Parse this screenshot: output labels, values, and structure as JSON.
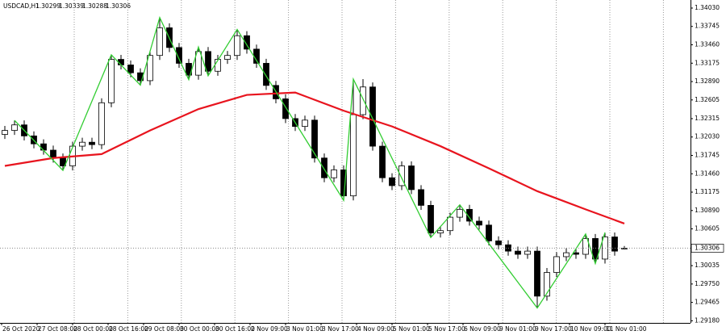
{
  "chart_data": {
    "type": "candlestick",
    "header": {
      "symbol": "USDCAD,H1",
      "open": 1.30299,
      "high": 1.30339,
      "low": 1.30288,
      "close": 1.30306
    },
    "open": [
      1.3207,
      1.32132,
      1.32218,
      1.32047,
      1.31924,
      1.31826,
      1.31704,
      1.31582,
      1.31888,
      1.31949,
      1.31912,
      1.32561,
      1.33234,
      1.33148,
      1.33026,
      1.32904,
      1.33295,
      1.33724,
      1.33418,
      1.33173,
      1.32989,
      1.33356,
      1.3305,
      1.33234,
      1.33295,
      1.33601,
      1.33393,
      1.33173,
      1.3283,
      1.32622,
      1.32316,
      1.32194,
      1.32292,
      1.31704,
      1.31398,
      1.3152,
      1.31117,
      1.32377,
      1.32806,
      1.31888,
      1.31398,
      1.31276,
      1.31582,
      1.31214,
      1.3097,
      1.30541,
      1.30578,
      1.30786,
      1.30908,
      1.30725,
      1.30664,
      1.30419,
      1.30358,
      1.3026,
      1.30211,
      1.3026,
      1.29562,
      1.29929,
      1.30174,
      1.30235,
      1.30211,
      1.30456,
      1.30137,
      1.3048,
      1.30299
    ],
    "high": [
      1.32202,
      1.32288,
      1.32288,
      1.32117,
      1.31994,
      1.31896,
      1.31774,
      1.31958,
      1.32019,
      1.32019,
      1.32631,
      1.33304,
      1.33304,
      1.33218,
      1.33096,
      1.33365,
      1.33883,
      1.33794,
      1.33488,
      1.33243,
      1.33426,
      1.33426,
      1.33304,
      1.33365,
      1.33699,
      1.33671,
      1.33463,
      1.33243,
      1.329,
      1.32692,
      1.32386,
      1.32362,
      1.32362,
      1.31774,
      1.3159,
      1.3159,
      1.32928,
      1.32928,
      1.32876,
      1.31958,
      1.31468,
      1.31652,
      1.31652,
      1.31284,
      1.3104,
      1.30648,
      1.30856,
      1.30978,
      1.30978,
      1.30795,
      1.30734,
      1.30489,
      1.30428,
      1.3033,
      1.3033,
      1.3033,
      1.29999,
      1.30244,
      1.30305,
      1.30305,
      1.30526,
      1.30526,
      1.3055,
      1.3055,
      1.30339
    ],
    "low": [
      1.32,
      1.32062,
      1.31977,
      1.31854,
      1.31756,
      1.31634,
      1.31512,
      1.31512,
      1.31818,
      1.31842,
      1.31842,
      1.32491,
      1.33078,
      1.32956,
      1.32834,
      1.32834,
      1.33225,
      1.33348,
      1.33103,
      1.32919,
      1.32919,
      1.3298,
      1.3298,
      1.33164,
      1.33225,
      1.33323,
      1.33103,
      1.3276,
      1.32552,
      1.32246,
      1.32124,
      1.32124,
      1.31634,
      1.31328,
      1.31328,
      1.31047,
      1.31047,
      1.32307,
      1.31818,
      1.31328,
      1.31206,
      1.31206,
      1.31144,
      1.309,
      1.30471,
      1.30471,
      1.30508,
      1.30716,
      1.30655,
      1.30594,
      1.30349,
      1.30288,
      1.3019,
      1.30141,
      1.30141,
      1.29378,
      1.29492,
      1.29859,
      1.30104,
      1.30141,
      1.30141,
      1.30067,
      1.30067,
      1.3019,
      1.30288
    ],
    "close": [
      1.32132,
      1.32218,
      1.32047,
      1.31924,
      1.31826,
      1.31704,
      1.31582,
      1.31888,
      1.31949,
      1.31912,
      1.32561,
      1.33234,
      1.33148,
      1.33026,
      1.32904,
      1.33295,
      1.33724,
      1.33418,
      1.33173,
      1.32989,
      1.33356,
      1.3305,
      1.33234,
      1.33295,
      1.33601,
      1.33393,
      1.33173,
      1.3283,
      1.32622,
      1.32316,
      1.32194,
      1.32292,
      1.31704,
      1.31398,
      1.3152,
      1.31117,
      1.32377,
      1.32806,
      1.31888,
      1.31398,
      1.31276,
      1.31582,
      1.31214,
      1.3097,
      1.30541,
      1.30578,
      1.30786,
      1.30908,
      1.30725,
      1.30664,
      1.30419,
      1.30358,
      1.3026,
      1.30211,
      1.3026,
      1.29562,
      1.29929,
      1.30174,
      1.30235,
      1.30211,
      1.30456,
      1.30137,
      1.3048,
      1.3026,
      1.30306
    ],
    "overlays": {
      "ma": {
        "color": "#e8141e",
        "x": [
          0,
          5,
          10,
          15,
          20,
          25,
          30,
          35,
          40,
          45,
          50,
          55,
          60,
          64
        ],
        "values": [
          1.31582,
          1.31704,
          1.31765,
          1.32132,
          1.32463,
          1.32683,
          1.3272,
          1.32438,
          1.32194,
          1.31888,
          1.31545,
          1.3119,
          1.30908,
          1.30688
        ]
      },
      "zigzag": {
        "color": "#32cd32",
        "x": [
          1,
          6,
          11,
          14,
          16,
          19,
          20,
          21,
          24,
          35,
          36,
          44,
          47,
          55,
          60,
          61,
          62
        ],
        "values": [
          1.32288,
          1.31512,
          1.33304,
          1.32834,
          1.33883,
          1.32919,
          1.33426,
          1.3298,
          1.33699,
          1.31047,
          1.32928,
          1.30471,
          1.30978,
          1.29378,
          1.30526,
          1.30067,
          1.3055
        ]
      }
    },
    "current_price": 1.30306,
    "x_labels": [
      "26 Oct 2020",
      "27 Oct 08:00",
      "28 Oct 00:00",
      "28 Oct 16:00",
      "29 Oct 08:00",
      "30 Oct 00:00",
      "30 Oct 16:00",
      "2 Nov 09:00",
      "3 Nov 01:00",
      "3 Nov 17:00",
      "4 Nov 09:00",
      "5 Nov 01:00",
      "5 Nov 17:00",
      "6 Nov 09:00",
      "9 Nov 01:00",
      "9 Nov 17:00",
      "10 Nov 09:00",
      "11 Nov 01:00"
    ],
    "ylim": [
      1.29147,
      1.34155
    ],
    "yticks": [
      {
        "value": 1.3403,
        "label": "1.34030"
      },
      1.33745,
      {
        "value": 1.3346,
        "label": "1.33460"
      },
      1.33175,
      {
        "value": 1.3289,
        "label": "1.32890"
      },
      1.32605,
      1.32315,
      {
        "value": 1.3203,
        "label": "1.32030"
      },
      1.31745,
      {
        "value": 1.3146,
        "label": "1.31460"
      },
      1.31175,
      {
        "value": 1.3089,
        "label": "1.30890"
      },
      1.30605,
      1.30035,
      {
        "value": 1.2975,
        "label": "1.29750"
      },
      1.29465,
      {
        "value": 1.2918,
        "label": "1.29180"
      }
    ],
    "grid": true
  }
}
